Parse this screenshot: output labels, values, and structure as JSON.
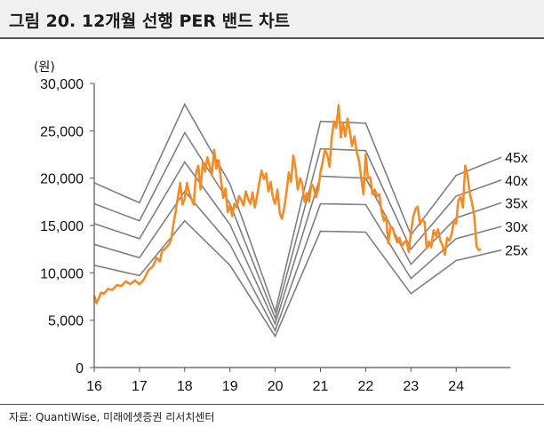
{
  "title": "그림 20. 12개월 선행 PER 밴드 차트",
  "source": "자료: QuantiWise, 미래에셋증권 리서치센터",
  "chart_data": {
    "type": "line",
    "unit_label": "(원)",
    "ylim": [
      0,
      30000
    ],
    "yticks": [
      0,
      5000,
      10000,
      15000,
      20000,
      25000,
      30000
    ],
    "ytick_labels": [
      "0",
      "5,000",
      "10,000",
      "15,000",
      "20,000",
      "25,000",
      "30,000"
    ],
    "xlim": [
      16,
      25.2
    ],
    "xticks": [
      16,
      17,
      18,
      19,
      20,
      21,
      22,
      23,
      24
    ],
    "xtick_labels": [
      "16",
      "17",
      "18",
      "19",
      "20",
      "21",
      "22",
      "23",
      "24"
    ],
    "grid": false,
    "price_color": "#f28c28",
    "band_color": "#7f7f7f",
    "bands": [
      {
        "name": "45x",
        "points": [
          [
            16,
            19500
          ],
          [
            17,
            17400
          ],
          [
            18,
            27800
          ],
          [
            19,
            19400
          ],
          [
            20,
            5900
          ],
          [
            21,
            26000
          ],
          [
            22,
            25800
          ],
          [
            23,
            14000
          ],
          [
            24,
            20300
          ],
          [
            25,
            22200
          ]
        ]
      },
      {
        "name": "40x",
        "points": [
          [
            16,
            17300
          ],
          [
            17,
            15500
          ],
          [
            18,
            24800
          ],
          [
            19,
            17300
          ],
          [
            20,
            5200
          ],
          [
            21,
            23100
          ],
          [
            22,
            22900
          ],
          [
            23,
            12500
          ],
          [
            24,
            18100
          ],
          [
            25,
            19800
          ]
        ]
      },
      {
        "name": "35x",
        "points": [
          [
            16,
            15200
          ],
          [
            17,
            13600
          ],
          [
            18,
            21700
          ],
          [
            19,
            15100
          ],
          [
            20,
            4600
          ],
          [
            21,
            20200
          ],
          [
            22,
            20000
          ],
          [
            23,
            10900
          ],
          [
            24,
            15800
          ],
          [
            25,
            17400
          ]
        ]
      },
      {
        "name": "30x",
        "points": [
          [
            16,
            13000
          ],
          [
            17,
            11600
          ],
          [
            18,
            18600
          ],
          [
            19,
            13000
          ],
          [
            20,
            3900
          ],
          [
            21,
            17300
          ],
          [
            22,
            17200
          ],
          [
            23,
            9400
          ],
          [
            24,
            13600
          ],
          [
            25,
            14900
          ]
        ]
      },
      {
        "name": "25x",
        "points": [
          [
            16,
            10800
          ],
          [
            17,
            9700
          ],
          [
            18,
            15500
          ],
          [
            19,
            10800
          ],
          [
            20,
            3300
          ],
          [
            21,
            14400
          ],
          [
            22,
            14300
          ],
          [
            23,
            7800
          ],
          [
            24,
            11300
          ],
          [
            25,
            12400
          ]
        ]
      }
    ],
    "price": [
      [
        16.0,
        7600
      ],
      [
        16.05,
        6800
      ],
      [
        16.1,
        7300
      ],
      [
        16.15,
        7900
      ],
      [
        16.22,
        7800
      ],
      [
        16.3,
        8300
      ],
      [
        16.4,
        8200
      ],
      [
        16.5,
        8700
      ],
      [
        16.6,
        8600
      ],
      [
        16.7,
        9100
      ],
      [
        16.8,
        8800
      ],
      [
        16.9,
        9200
      ],
      [
        17.0,
        8800
      ],
      [
        17.08,
        9200
      ],
      [
        17.15,
        9800
      ],
      [
        17.2,
        10300
      ],
      [
        17.3,
        10700
      ],
      [
        17.38,
        11600
      ],
      [
        17.45,
        11200
      ],
      [
        17.5,
        12300
      ],
      [
        17.58,
        12600
      ],
      [
        17.65,
        13000
      ],
      [
        17.7,
        13500
      ],
      [
        17.75,
        15100
      ],
      [
        17.8,
        16500
      ],
      [
        17.85,
        18000
      ],
      [
        17.9,
        19500
      ],
      [
        17.95,
        17200
      ],
      [
        18.0,
        17800
      ],
      [
        18.05,
        19500
      ],
      [
        18.1,
        18400
      ],
      [
        18.15,
        17800
      ],
      [
        18.2,
        17200
      ],
      [
        18.25,
        20500
      ],
      [
        18.3,
        21300
      ],
      [
        18.35,
        18800
      ],
      [
        18.4,
        21700
      ],
      [
        18.45,
        20700
      ],
      [
        18.5,
        22200
      ],
      [
        18.55,
        21300
      ],
      [
        18.6,
        20300
      ],
      [
        18.65,
        23000
      ],
      [
        18.7,
        21000
      ],
      [
        18.75,
        21900
      ],
      [
        18.8,
        19900
      ],
      [
        18.85,
        17900
      ],
      [
        18.9,
        18900
      ],
      [
        18.95,
        16400
      ],
      [
        19.0,
        17100
      ],
      [
        19.05,
        16000
      ],
      [
        19.1,
        17300
      ],
      [
        19.15,
        16900
      ],
      [
        19.2,
        18100
      ],
      [
        19.25,
        17700
      ],
      [
        19.3,
        17100
      ],
      [
        19.35,
        18600
      ],
      [
        19.4,
        17800
      ],
      [
        19.45,
        17300
      ],
      [
        19.5,
        18500
      ],
      [
        19.55,
        16900
      ],
      [
        19.6,
        18100
      ],
      [
        19.65,
        19600
      ],
      [
        19.7,
        20800
      ],
      [
        19.75,
        19900
      ],
      [
        19.8,
        20500
      ],
      [
        19.85,
        18600
      ],
      [
        19.9,
        19600
      ],
      [
        19.95,
        17900
      ],
      [
        20.0,
        17300
      ],
      [
        20.05,
        18800
      ],
      [
        20.1,
        16300
      ],
      [
        20.15,
        15700
      ],
      [
        20.2,
        16900
      ],
      [
        20.25,
        18500
      ],
      [
        20.3,
        20600
      ],
      [
        20.35,
        19600
      ],
      [
        20.4,
        22400
      ],
      [
        20.45,
        21000
      ],
      [
        20.5,
        18800
      ],
      [
        20.55,
        20000
      ],
      [
        20.6,
        19300
      ],
      [
        20.65,
        17500
      ],
      [
        20.7,
        18400
      ],
      [
        20.75,
        17500
      ],
      [
        20.8,
        19400
      ],
      [
        20.85,
        19000
      ],
      [
        20.9,
        18000
      ],
      [
        20.95,
        18800
      ],
      [
        21.0,
        20600
      ],
      [
        21.05,
        21700
      ],
      [
        21.1,
        23000
      ],
      [
        21.15,
        22500
      ],
      [
        21.2,
        21200
      ],
      [
        21.25,
        24300
      ],
      [
        21.3,
        26000
      ],
      [
        21.35,
        25300
      ],
      [
        21.4,
        27700
      ],
      [
        21.45,
        24300
      ],
      [
        21.5,
        25800
      ],
      [
        21.55,
        24400
      ],
      [
        21.6,
        26300
      ],
      [
        21.65,
        24900
      ],
      [
        21.7,
        23400
      ],
      [
        21.75,
        24400
      ],
      [
        21.8,
        22800
      ],
      [
        21.85,
        21900
      ],
      [
        21.9,
        20100
      ],
      [
        21.95,
        18300
      ],
      [
        22.0,
        22500
      ],
      [
        22.05,
        20000
      ],
      [
        22.1,
        20100
      ],
      [
        22.15,
        18300
      ],
      [
        22.2,
        18800
      ],
      [
        22.25,
        18100
      ],
      [
        22.3,
        18300
      ],
      [
        22.35,
        16500
      ],
      [
        22.4,
        15500
      ],
      [
        22.45,
        16000
      ],
      [
        22.5,
        13100
      ],
      [
        22.55,
        14900
      ],
      [
        22.6,
        14700
      ],
      [
        22.65,
        13800
      ],
      [
        22.7,
        13200
      ],
      [
        22.75,
        13700
      ],
      [
        22.8,
        12800
      ],
      [
        22.85,
        13200
      ],
      [
        22.9,
        13400
      ],
      [
        22.95,
        12200
      ],
      [
        23.0,
        14300
      ],
      [
        23.05,
        15900
      ],
      [
        23.1,
        16700
      ],
      [
        23.15,
        17000
      ],
      [
        23.2,
        15100
      ],
      [
        23.25,
        15600
      ],
      [
        23.3,
        15400
      ],
      [
        23.35,
        12600
      ],
      [
        23.4,
        13300
      ],
      [
        23.45,
        12700
      ],
      [
        23.5,
        14500
      ],
      [
        23.55,
        13900
      ],
      [
        23.6,
        14600
      ],
      [
        23.65,
        13400
      ],
      [
        23.7,
        12900
      ],
      [
        23.75,
        11900
      ],
      [
        23.8,
        13700
      ],
      [
        23.85,
        13400
      ],
      [
        23.9,
        14100
      ],
      [
        23.95,
        15500
      ],
      [
        24.0,
        15200
      ],
      [
        24.05,
        17700
      ],
      [
        24.1,
        18000
      ],
      [
        24.15,
        16900
      ],
      [
        24.2,
        21300
      ],
      [
        24.25,
        20300
      ],
      [
        24.3,
        18400
      ],
      [
        24.35,
        17400
      ],
      [
        24.4,
        16000
      ],
      [
        24.45,
        12800
      ],
      [
        24.5,
        12400
      ],
      [
        24.55,
        12500
      ]
    ]
  }
}
